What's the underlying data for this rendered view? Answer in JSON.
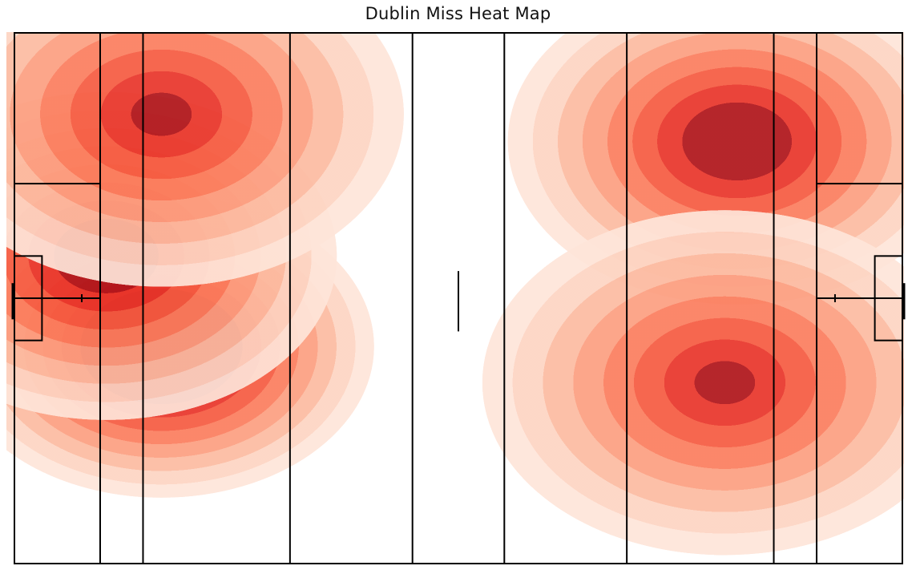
{
  "chart_data": {
    "type": "heatmap",
    "title": "Dublin Miss Heat Map",
    "xlabel": "",
    "ylabel": "",
    "axes_visible": false,
    "grid": false,
    "legend": "none",
    "colormap": "Reds",
    "pitch": {
      "length": 145,
      "width": 88,
      "line_color": "#000000",
      "pitch_lines_x": [
        0,
        14,
        21,
        45,
        65,
        80,
        100,
        124,
        131,
        145
      ],
      "goal_box_large": {
        "depth": 14,
        "y_range": [
          25,
          44
        ]
      },
      "goal_box_small": {
        "depth": 4.5,
        "y_range": [
          37,
          51
        ]
      },
      "center_mark_y_range": [
        39.5,
        49.5
      ],
      "penalty_mark": {
        "x_from_end": 11,
        "y": 44
      },
      "goal_post_y_range": [
        41.5,
        47.5
      ]
    },
    "density_clusters": [
      {
        "name": "",
        "x": 24,
        "y": 13.5,
        "intensity": 1.0
      },
      {
        "name": "",
        "x": 15,
        "y": 37,
        "intensity": 0.82
      },
      {
        "name": "",
        "x": 24,
        "y": 52,
        "intensity": 0.55
      },
      {
        "name": "",
        "x": 118,
        "y": 18,
        "intensity": 0.8
      },
      {
        "name": "",
        "x": 116,
        "y": 58,
        "intensity": 1.0
      }
    ],
    "contour_levels": [
      {
        "color": "#fee5d9"
      },
      {
        "color": "#fdd4c2"
      },
      {
        "color": "#fcbba1"
      },
      {
        "color": "#fc9e80"
      },
      {
        "color": "#fb7d5d"
      },
      {
        "color": "#f55a40"
      },
      {
        "color": "#e83429"
      },
      {
        "color": "#af1319"
      }
    ]
  }
}
